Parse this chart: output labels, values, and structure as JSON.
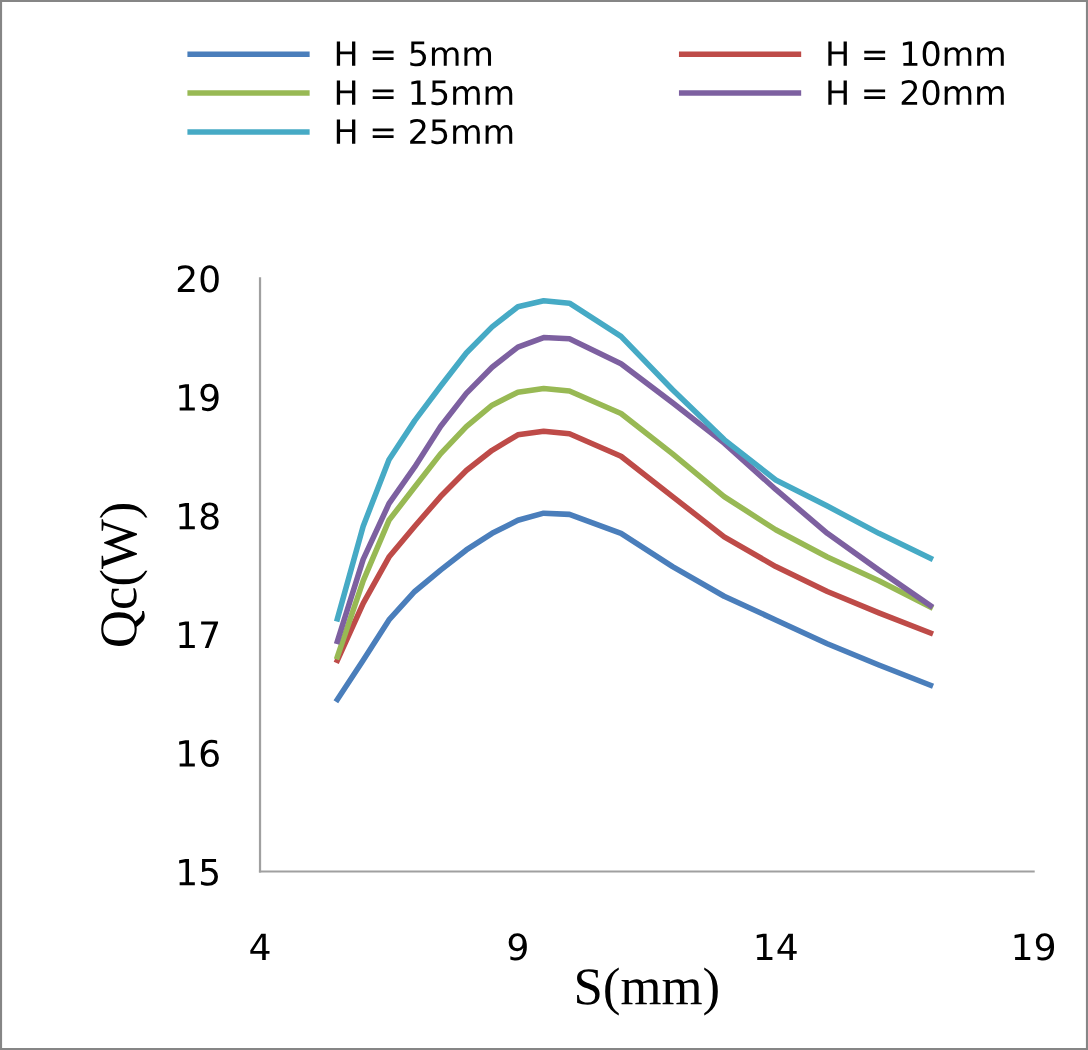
{
  "chart_data": {
    "type": "line",
    "xlabel": "S(mm)",
    "ylabel": "Qc(W)",
    "x": [
      5.5,
      6,
      6.5,
      7,
      7.5,
      8,
      8.5,
      9,
      9.5,
      10,
      11,
      12,
      13,
      14,
      15,
      16,
      17
    ],
    "series": [
      {
        "name": "H = 5mm",
        "color": "#4a7ebb",
        "values": [
          16.45,
          16.78,
          17.12,
          17.36,
          17.54,
          17.71,
          17.85,
          17.96,
          18.02,
          18.01,
          17.85,
          17.57,
          17.32,
          17.12,
          16.92,
          16.74,
          16.57
        ]
      },
      {
        "name": "H = 10mm",
        "color": "#be4b48",
        "values": [
          16.78,
          17.26,
          17.65,
          17.91,
          18.16,
          18.38,
          18.55,
          18.68,
          18.71,
          18.69,
          18.5,
          18.16,
          17.82,
          17.57,
          17.36,
          17.18,
          17.01
        ]
      },
      {
        "name": "H = 15mm",
        "color": "#98b954",
        "values": [
          16.81,
          17.45,
          17.96,
          18.24,
          18.52,
          18.75,
          18.93,
          19.04,
          19.07,
          19.05,
          18.86,
          18.52,
          18.16,
          17.88,
          17.65,
          17.45,
          17.23
        ]
      },
      {
        "name": "H = 20mm",
        "color": "#7d60a0",
        "values": [
          16.94,
          17.63,
          18.1,
          18.41,
          18.75,
          19.03,
          19.25,
          19.42,
          19.5,
          19.49,
          19.28,
          18.95,
          18.61,
          18.22,
          17.85,
          17.54,
          17.24
        ]
      },
      {
        "name": "H = 25mm",
        "color": "#46aac5",
        "values": [
          17.13,
          17.91,
          18.47,
          18.8,
          19.09,
          19.37,
          19.59,
          19.76,
          19.81,
          19.79,
          19.51,
          19.06,
          18.64,
          18.3,
          18.08,
          17.85,
          17.64
        ]
      }
    ],
    "xlim": [
      4,
      19
    ],
    "xticks": [
      4,
      9,
      14,
      19
    ],
    "ylim": [
      15,
      20
    ],
    "yticks": [
      15,
      16,
      17,
      18,
      19,
      20
    ],
    "grid": false,
    "legend": "top",
    "marker": "none",
    "line_style": "solid"
  }
}
